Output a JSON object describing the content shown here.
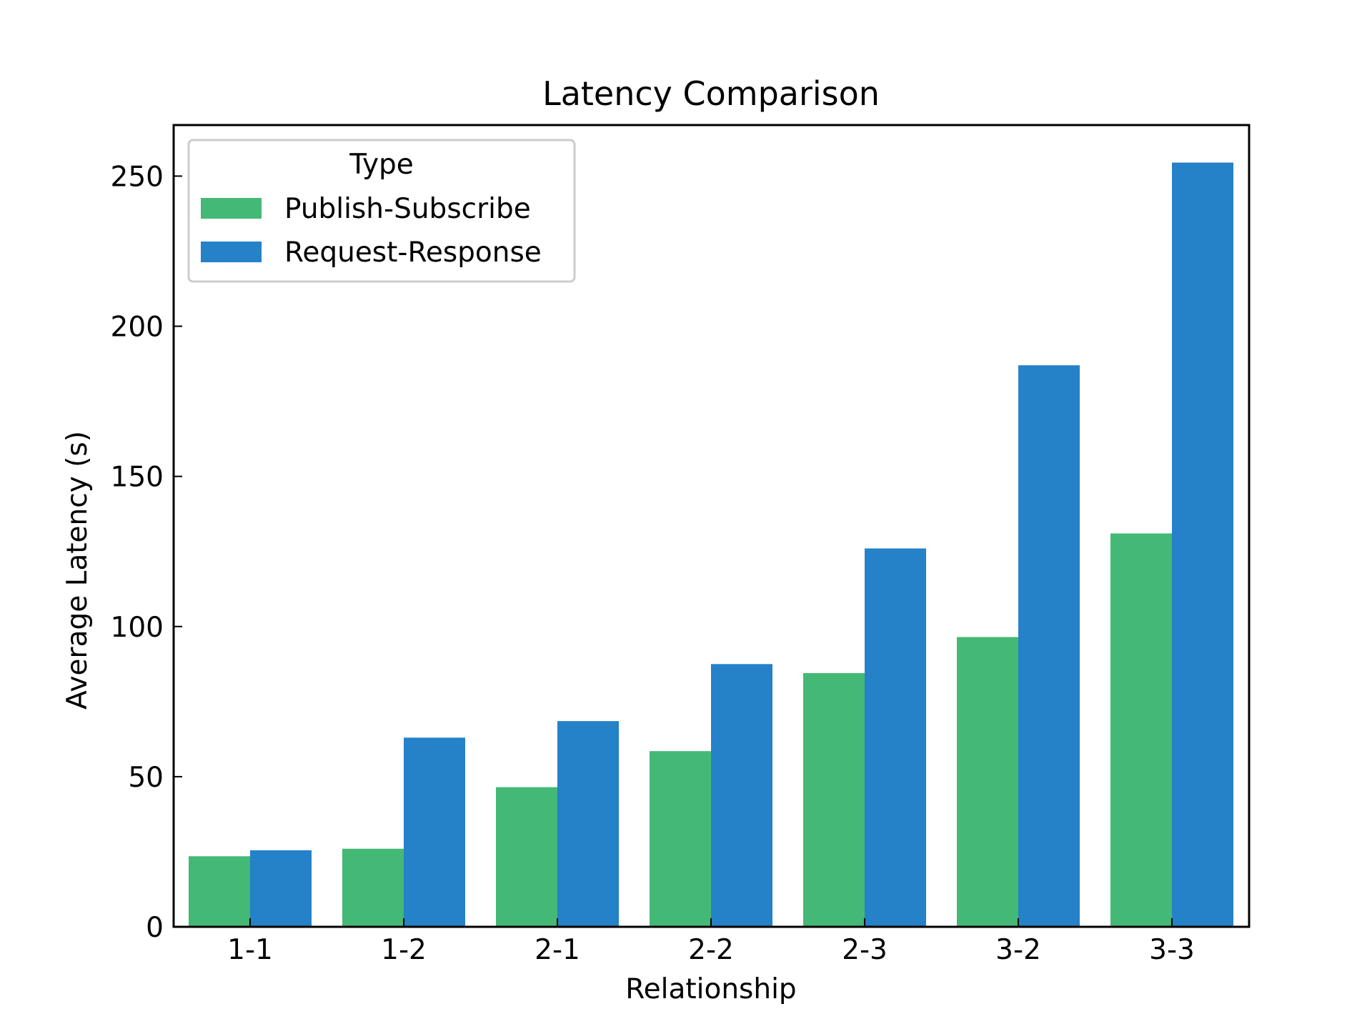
{
  "chart_data": {
    "type": "bar",
    "title": "Latency Comparison",
    "xlabel": "Relationship",
    "ylabel": "Average Latency (s)",
    "categories": [
      "1-1",
      "1-2",
      "2-1",
      "2-2",
      "2-3",
      "3-2",
      "3-3"
    ],
    "series": [
      {
        "name": "Publish-Subscribe",
        "color": "#44b875",
        "values": [
          23.5,
          26,
          46.5,
          58.5,
          84.5,
          96.5,
          131
        ]
      },
      {
        "name": "Request-Response",
        "color": "#2581c8",
        "values": [
          25.5,
          63,
          68.5,
          87.5,
          126,
          187,
          254.5
        ]
      }
    ],
    "ylim": [
      0,
      267
    ],
    "yticks": [
      0,
      50,
      100,
      150,
      200,
      250
    ],
    "legend": {
      "title": "Type",
      "position": "top-left"
    },
    "grid": false
  }
}
